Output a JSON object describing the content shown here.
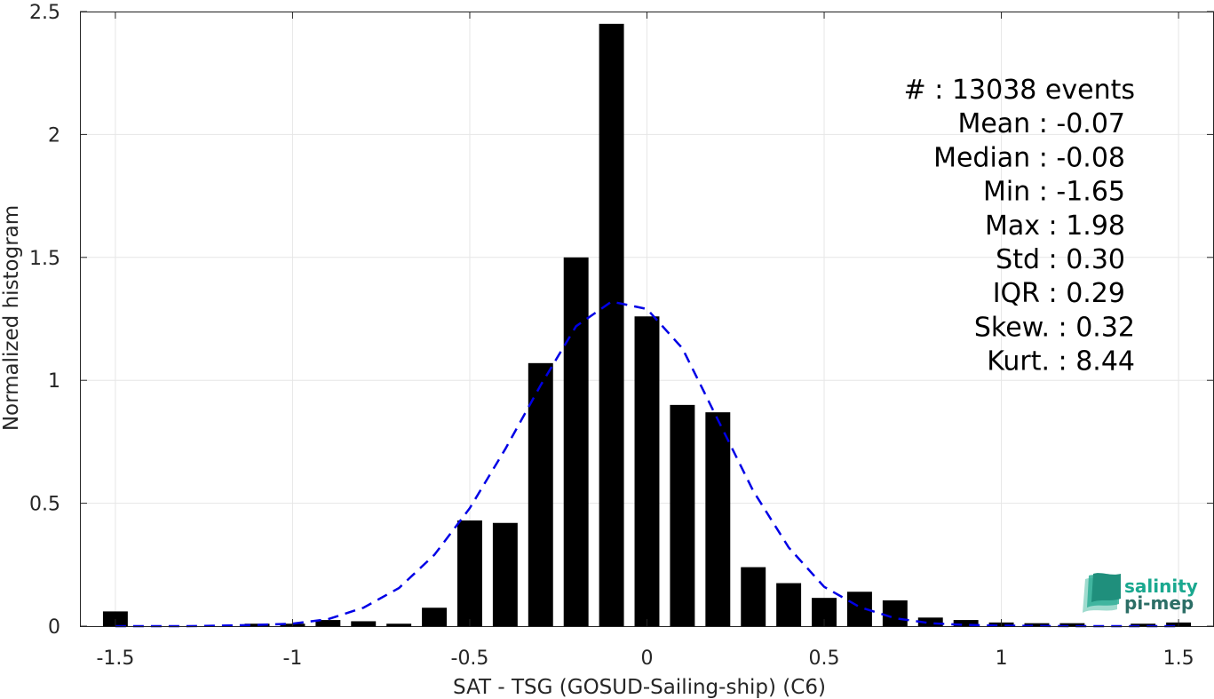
{
  "chart_data": {
    "type": "bar",
    "xlabel": "SAT - TSG (GOSUD-Sailing-ship) (C6)",
    "ylabel": "Normalized histogram",
    "xlim": [
      -1.6,
      1.6
    ],
    "ylim": [
      0,
      2.5
    ],
    "xticks": [
      -1.5,
      -1,
      -0.5,
      0,
      0.5,
      1,
      1.5
    ],
    "xtick_labels": [
      "-1.5",
      "-1",
      "-0.5",
      "0",
      "0.5",
      "1",
      "1.5"
    ],
    "yticks": [
      0,
      0.5,
      1,
      1.5,
      2,
      2.5
    ],
    "ytick_labels": [
      "0",
      "0.5",
      "1",
      "1.5",
      "2",
      "2.5"
    ],
    "grid": true,
    "bin_width": 0.1,
    "bar_width": 0.07,
    "histogram": {
      "x": [
        -1.5,
        -1.4,
        -1.3,
        -1.2,
        -1.1,
        -1.0,
        -0.9,
        -0.8,
        -0.7,
        -0.6,
        -0.5,
        -0.4,
        -0.3,
        -0.2,
        -0.1,
        0.0,
        0.1,
        0.2,
        0.3,
        0.4,
        0.5,
        0.6,
        0.7,
        0.8,
        0.9,
        1.0,
        1.1,
        1.2,
        1.3,
        1.4,
        1.5
      ],
      "values": [
        0.06,
        0.0,
        0.0,
        0.0,
        0.01,
        0.01,
        0.025,
        0.02,
        0.01,
        0.075,
        0.43,
        0.42,
        1.07,
        1.5,
        2.45,
        1.26,
        0.9,
        0.87,
        0.24,
        0.175,
        0.115,
        0.14,
        0.105,
        0.035,
        0.025,
        0.015,
        0.012,
        0.012,
        0.0,
        0.01,
        0.015
      ],
      "color": "#000000"
    },
    "fit_curve": {
      "style": "dashed",
      "color": "#0000e6",
      "x": [
        -1.5,
        -1.4,
        -1.3,
        -1.2,
        -1.1,
        -1.0,
        -0.9,
        -0.8,
        -0.7,
        -0.6,
        -0.5,
        -0.4,
        -0.3,
        -0.2,
        -0.1,
        0.0,
        0.1,
        0.2,
        0.3,
        0.4,
        0.5,
        0.6,
        0.7,
        0.8,
        0.9,
        1.0,
        1.1,
        1.2,
        1.3,
        1.4,
        1.5
      ],
      "values": [
        0.0,
        0.0,
        0.0,
        0.002,
        0.005,
        0.01,
        0.028,
        0.075,
        0.155,
        0.29,
        0.48,
        0.72,
        0.98,
        1.22,
        1.32,
        1.29,
        1.13,
        0.84,
        0.55,
        0.32,
        0.16,
        0.078,
        0.032,
        0.012,
        0.005,
        0.002,
        0.001,
        0.0,
        0.0,
        0.0,
        0.0
      ]
    },
    "stats": [
      {
        "label": "#  : 13038 events"
      },
      {
        "label": "Mean : -0.07"
      },
      {
        "label": "Median : -0.08"
      },
      {
        "label": "Min : -1.65"
      },
      {
        "label": "Max : 1.98"
      },
      {
        "label": "Std : 0.30"
      },
      {
        "label": "IQR : 0.29"
      },
      {
        "label": "Skew. : 0.32"
      },
      {
        "label": "Kurt. : 8.44"
      }
    ]
  },
  "logo": {
    "line1": "salinity",
    "line2": "pi-mep",
    "color_primary": "#1aa88f",
    "color_secondary": "#2c6e66"
  }
}
